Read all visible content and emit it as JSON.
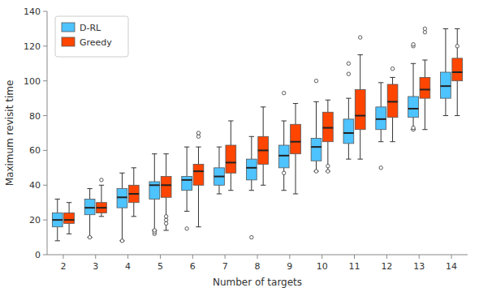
{
  "chart_data": {
    "type": "box",
    "xlabel": "Number of targets",
    "ylabel": "Maximum revisit time",
    "categories": [
      "2",
      "3",
      "4",
      "5",
      "6",
      "7",
      "8",
      "9",
      "10",
      "11",
      "12",
      "13",
      "14"
    ],
    "series": [
      {
        "name": "D-RL",
        "color": "#4DC3FF",
        "whislo": [
          8,
          10,
          8,
          14,
          25,
          35,
          37,
          37,
          48,
          55,
          65,
          72,
          80
        ],
        "q1": [
          16,
          23,
          27,
          32,
          37,
          40,
          43,
          50,
          54,
          64,
          72,
          79,
          90
        ],
        "med": [
          20,
          27,
          33,
          40,
          43,
          45,
          50,
          57,
          62,
          70,
          78,
          84,
          97
        ],
        "q3": [
          24,
          32,
          38,
          42,
          45,
          50,
          55,
          63,
          67,
          78,
          85,
          91,
          105
        ],
        "whishi": [
          32,
          38,
          47,
          58,
          62,
          62,
          68,
          77,
          88,
          90,
          99,
          110,
          130
        ],
        "fliers": [
          [],
          [
            10
          ],
          [
            8
          ],
          [
            12,
            13,
            14
          ],
          [
            15
          ],
          [],
          [
            10
          ],
          [
            47,
            93
          ],
          [
            48,
            100
          ],
          [
            104,
            110
          ],
          [
            50
          ],
          [
            72,
            73,
            120,
            121
          ],
          []
        ]
      },
      {
        "name": "Greedy",
        "color": "#FF4500",
        "whislo": [
          12,
          22,
          22,
          14,
          16,
          37,
          40,
          35,
          48,
          55,
          65,
          72,
          80
        ],
        "q1": [
          18,
          24,
          30,
          33,
          40,
          47,
          52,
          58,
          65,
          72,
          79,
          90,
          100
        ],
        "med": [
          20,
          27,
          35,
          40,
          48,
          53,
          60,
          65,
          73,
          80,
          88,
          95,
          105
        ],
        "q3": [
          24,
          30,
          40,
          45,
          52,
          63,
          68,
          75,
          82,
          95,
          98,
          102,
          113
        ],
        "whishi": [
          30,
          40,
          50,
          58,
          62,
          77,
          85,
          87,
          89,
          115,
          102,
          112,
          130
        ],
        "fliers": [
          [],
          [
            43
          ],
          [],
          [
            18,
            20,
            22
          ],
          [
            68,
            70
          ],
          [],
          [],
          [],
          [
            48,
            51
          ],
          [
            125
          ],
          [
            107
          ],
          [
            128,
            130
          ],
          [
            120
          ]
        ]
      }
    ],
    "ylim": [
      0,
      140
    ],
    "yticks": [
      0,
      20,
      40,
      60,
      80,
      100,
      120,
      140
    ],
    "grid": false,
    "legend": "upper left"
  }
}
